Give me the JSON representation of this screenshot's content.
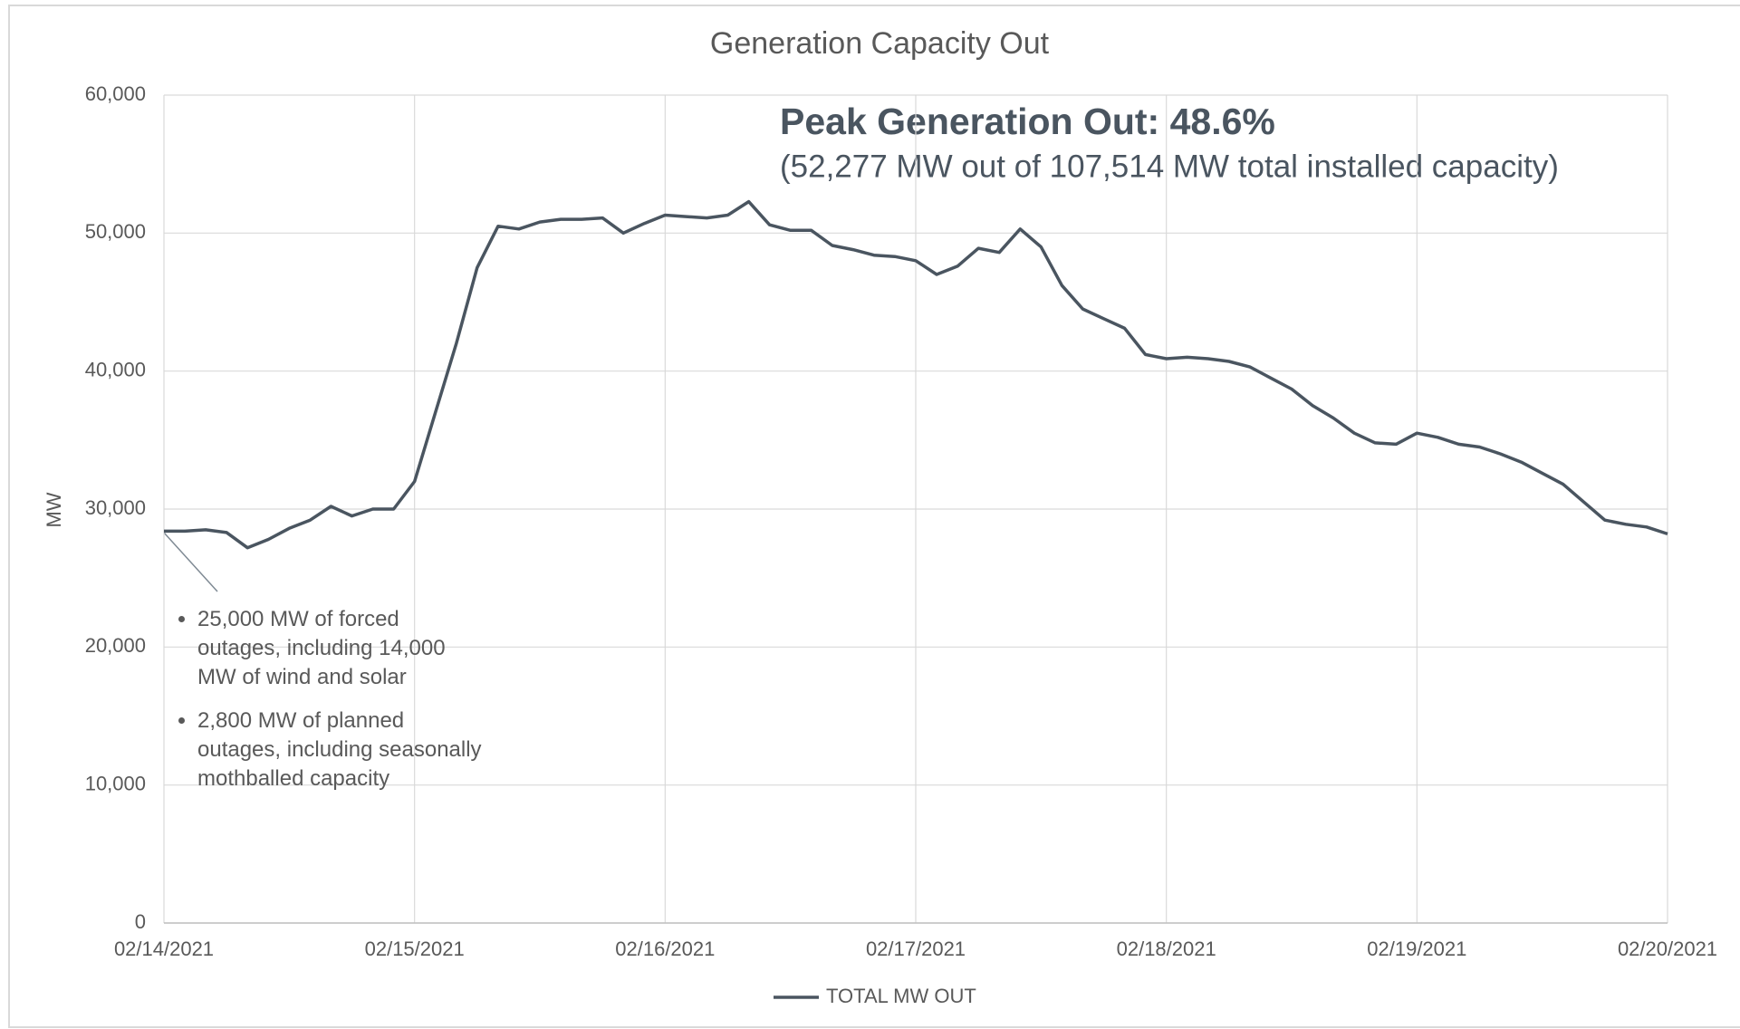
{
  "chart_data": {
    "type": "line",
    "title": "Generation Capacity Out",
    "y_label": "MW",
    "annotations": {
      "headline": "Peak Generation Out: 48.6%",
      "subline": "(52,277 MW out of 107,514 MW total installed capacity)",
      "bullets": [
        "25,000 MW of forced outages, including 14,000 MW of wind and solar",
        "2,800 MW of planned outages, including seasonally mothballed capacity"
      ]
    },
    "x": [
      "2021-02-14T00:00",
      "2021-02-14T02:00",
      "2021-02-14T04:00",
      "2021-02-14T06:00",
      "2021-02-14T08:00",
      "2021-02-14T10:00",
      "2021-02-14T12:00",
      "2021-02-14T14:00",
      "2021-02-14T16:00",
      "2021-02-14T18:00",
      "2021-02-14T20:00",
      "2021-02-14T22:00",
      "2021-02-15T00:00",
      "2021-02-15T02:00",
      "2021-02-15T04:00",
      "2021-02-15T06:00",
      "2021-02-15T08:00",
      "2021-02-15T10:00",
      "2021-02-15T12:00",
      "2021-02-15T14:00",
      "2021-02-15T16:00",
      "2021-02-15T18:00",
      "2021-02-15T20:00",
      "2021-02-15T22:00",
      "2021-02-16T00:00",
      "2021-02-16T02:00",
      "2021-02-16T04:00",
      "2021-02-16T06:00",
      "2021-02-16T08:00",
      "2021-02-16T10:00",
      "2021-02-16T12:00",
      "2021-02-16T14:00",
      "2021-02-16T16:00",
      "2021-02-16T18:00",
      "2021-02-16T20:00",
      "2021-02-16T22:00",
      "2021-02-17T00:00",
      "2021-02-17T02:00",
      "2021-02-17T04:00",
      "2021-02-17T06:00",
      "2021-02-17T08:00",
      "2021-02-17T10:00",
      "2021-02-17T12:00",
      "2021-02-17T14:00",
      "2021-02-17T16:00",
      "2021-02-17T18:00",
      "2021-02-17T20:00",
      "2021-02-17T22:00",
      "2021-02-18T00:00",
      "2021-02-18T02:00",
      "2021-02-18T04:00",
      "2021-02-18T06:00",
      "2021-02-18T08:00",
      "2021-02-18T10:00",
      "2021-02-18T12:00",
      "2021-02-18T14:00",
      "2021-02-18T16:00",
      "2021-02-18T18:00",
      "2021-02-18T20:00",
      "2021-02-18T22:00",
      "2021-02-19T00:00",
      "2021-02-19T02:00",
      "2021-02-19T04:00",
      "2021-02-19T06:00",
      "2021-02-19T08:00",
      "2021-02-19T10:00",
      "2021-02-19T12:00",
      "2021-02-19T14:00",
      "2021-02-19T16:00",
      "2021-02-19T18:00",
      "2021-02-19T20:00",
      "2021-02-19T22:00",
      "2021-02-20T00:00"
    ],
    "series": [
      {
        "name": "TOTAL MW OUT",
        "color": "#4a5560",
        "values": [
          28400,
          28400,
          28500,
          28300,
          27200,
          27800,
          28600,
          29200,
          30200,
          29500,
          30000,
          30000,
          32000,
          37000,
          42000,
          47500,
          50500,
          50300,
          50800,
          51000,
          51000,
          51100,
          50000,
          50700,
          51300,
          51200,
          51100,
          51300,
          52277,
          50600,
          50200,
          50200,
          49100,
          48800,
          48400,
          48300,
          48000,
          47000,
          47600,
          48900,
          48600,
          50300,
          49000,
          46200,
          44500,
          43800,
          43100,
          41200,
          40900,
          41000,
          40900,
          40700,
          40300,
          39500,
          38700,
          37500,
          36600,
          35500,
          34800,
          34700,
          35500,
          35200,
          34700,
          34500,
          34000,
          33400,
          32600,
          31800,
          30500,
          29200,
          28900,
          28700,
          28200
        ]
      }
    ],
    "xlim": [
      "2021-02-14T00:00",
      "2021-02-20T00:00"
    ],
    "xticks": [
      {
        "value": "2021-02-14T00:00",
        "label": "02/14/2021"
      },
      {
        "value": "2021-02-15T00:00",
        "label": "02/15/2021"
      },
      {
        "value": "2021-02-16T00:00",
        "label": "02/16/2021"
      },
      {
        "value": "2021-02-17T00:00",
        "label": "02/17/2021"
      },
      {
        "value": "2021-02-18T00:00",
        "label": "02/18/2021"
      },
      {
        "value": "2021-02-19T00:00",
        "label": "02/19/2021"
      },
      {
        "value": "2021-02-20T00:00",
        "label": "02/20/2021"
      }
    ],
    "ylim": [
      0,
      60000
    ],
    "yticks": [
      0,
      {
        "value": 10000,
        "label": "10,000"
      },
      {
        "value": 20000,
        "label": "20,000"
      },
      {
        "value": 30000,
        "label": "30,000"
      },
      {
        "value": 40000,
        "label": "40,000"
      },
      {
        "value": 50000,
        "label": "50,000"
      },
      {
        "value": 60000,
        "label": "60,000"
      }
    ],
    "grid": true,
    "legend": "bottom"
  }
}
